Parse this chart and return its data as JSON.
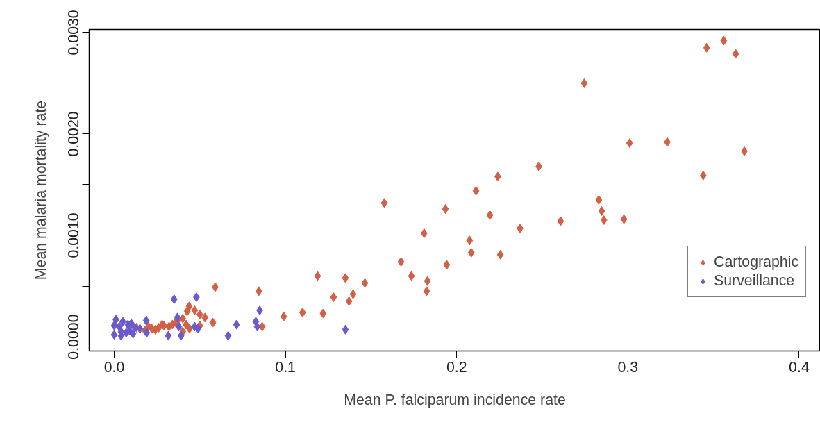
{
  "chart_data": {
    "type": "scatter",
    "xlabel": "Mean P. falciparum incidence rate",
    "ylabel": "Mean malaria mortality rate",
    "xlim": [
      -0.0146,
      0.4124
    ],
    "ylim": [
      -0.00014,
      0.00303
    ],
    "xticks": [
      {
        "value": 0,
        "label": "0.0"
      },
      0.1,
      0.2,
      0.3,
      0.4
    ],
    "yticks": [
      {
        "value": 0,
        "label": "0.0000"
      },
      {
        "value": 0.0005,
        "label": null
      },
      {
        "value": 0.001,
        "label": "0.0010"
      },
      {
        "value": 0.0015,
        "label": null
      },
      {
        "value": 0.002,
        "label": "0.0020"
      },
      {
        "value": 0.0025,
        "label": null
      },
      {
        "value": 0.003,
        "label": "0.0030"
      }
    ],
    "grid": false,
    "legend": "right",
    "marker": "diamond",
    "series": [
      {
        "name": "Cartographic",
        "color": "#d35f45",
        "x": [
          0.368,
          0.356,
          0.346,
          0.363,
          0.2745,
          0.301,
          0.323,
          0.344,
          0.248,
          0.224,
          0.283,
          0.2847,
          0.286,
          0.2977,
          0.2607,
          0.237,
          0.2194,
          0.2113,
          0.1577,
          0.1934,
          0.181,
          0.2076,
          0.2085,
          0.2255,
          0.1675,
          0.1942,
          0.1736,
          0.1829,
          0.1825,
          0.1188,
          0.135,
          0.1464,
          0.1281,
          0.1395,
          0.1371,
          0.099,
          0.11,
          0.122,
          0.059,
          0.0845,
          0.0864,
          0.0438,
          0.047,
          0.0426,
          0.05,
          0.053,
          0.0576,
          0.05,
          0.013,
          0.018,
          0.022,
          0.026,
          0.029,
          0.032,
          0.034,
          0.037,
          0.04,
          0.042,
          0.044,
          0.04,
          0.036,
          0.028,
          0.024,
          0.02
        ],
        "values": [
          0.00183,
          0.00292,
          0.00285,
          0.00279,
          0.0025,
          0.00191,
          0.00192,
          0.00159,
          0.00168,
          0.00158,
          0.00135,
          0.00124,
          0.00115,
          0.00116,
          0.00114,
          0.00107,
          0.0012,
          0.00144,
          0.00132,
          0.00126,
          0.00102,
          0.00095,
          0.00083,
          0.00081,
          0.00074,
          0.00071,
          0.0006,
          0.00055,
          0.00045,
          0.0006,
          0.00058,
          0.00053,
          0.00039,
          0.00042,
          0.00035,
          0.0002,
          0.00024,
          0.00023,
          0.00049,
          0.00045,
          0.0001,
          0.0003,
          0.00026,
          0.00025,
          0.00022,
          0.00019,
          0.00014,
          0.00011,
          9e-05,
          6e-05,
          8e-05,
          9e-05,
          0.00011,
          0.0001,
          0.00012,
          0.00016,
          0.00018,
          0.00012,
          8e-05,
          5e-05,
          0.00014,
          0.00012,
          7e-05,
          0.0001
        ]
      },
      {
        "name": "Surveillance",
        "color": "#6a5acd",
        "x": [
          0.135,
          0.035,
          0.048,
          0.085,
          0.0714,
          0.0827,
          0.0835,
          0.0665,
          0.0187,
          0.0316,
          0.039,
          0.0377,
          0.0369,
          0.047,
          0.049,
          0.015,
          0.019,
          0.011,
          0.001,
          0.003,
          0.004,
          0.005,
          0.007,
          0.008,
          0.009,
          0.0,
          0.0,
          0.004,
          0.012,
          0.01
        ],
        "values": [
          7e-05,
          0.00037,
          0.00039,
          0.00026,
          0.00012,
          0.00015,
          0.0001,
          1e-05,
          0.00016,
          1e-05,
          1e-05,
          0.0001,
          0.00019,
          0.0001,
          8e-05,
          8e-05,
          4e-05,
          3e-05,
          0.00017,
          0.0001,
          1e-05,
          0.00015,
          4e-05,
          0.00012,
          6e-05,
          0.00011,
          2e-05,
          5e-05,
          9e-05,
          0.00013
        ]
      }
    ]
  }
}
